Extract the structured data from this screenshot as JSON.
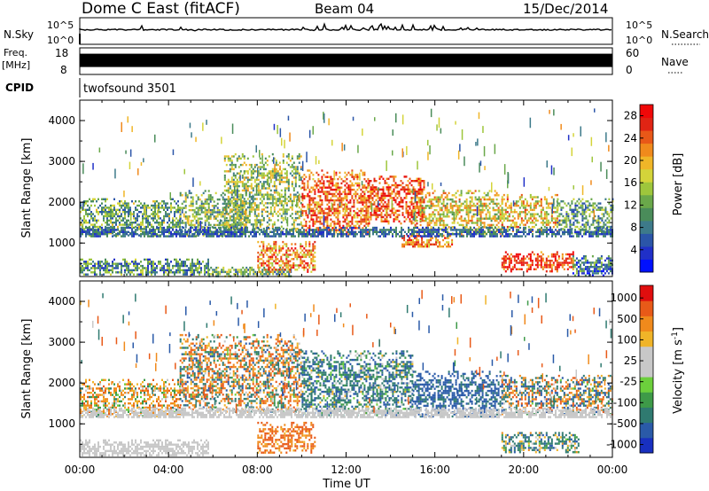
{
  "chart_data": [
    {
      "type": "line",
      "panel": "nsky",
      "header": {
        "site": "Dome C East (fitACF)",
        "beam": "Beam 04",
        "date": "15/Dec/2014"
      },
      "left_label": "N.Sky",
      "right_label": "N.Search",
      "left_ticks": [
        "10^5",
        "10^0"
      ],
      "right_ticks": [
        "10^5",
        "10^0"
      ],
      "x": [
        "00:00",
        "04:00",
        "08:00",
        "12:00",
        "16:00",
        "20:00",
        "00:00"
      ],
      "noise_level_fraction": 0.55
    },
    {
      "type": "line",
      "panel": "freq",
      "left_label": "Freq.",
      "left_unit": "[MHz]",
      "right_label": "Nave",
      "left_ticks": [
        "18",
        "8"
      ],
      "right_ticks": [
        "60",
        "0"
      ],
      "band": {
        "from_fraction": 0.22,
        "to_fraction": 0.72
      }
    },
    {
      "type": "table",
      "panel": "cpid",
      "label": "CPID",
      "value": "twofsound 3501"
    },
    {
      "type": "heatmap",
      "panel": "power",
      "ylabel": "Slant Range [km]",
      "y_ticks": [
        "1000",
        "2000",
        "3000",
        "4000"
      ],
      "ylim": [
        180,
        4500
      ],
      "xlim": [
        0,
        24
      ],
      "colorbar": {
        "label": "Power [dB]",
        "ticks": [
          "4",
          "8",
          "12",
          "16",
          "20",
          "24",
          "28"
        ],
        "range": [
          0,
          30
        ],
        "colors": [
          "#0010ff",
          "#2030c8",
          "#2b55a8",
          "#3d7a8a",
          "#4a8c5a",
          "#6aa84a",
          "#9ec63c",
          "#d4d43a",
          "#f0b628",
          "#f08a1c",
          "#e85818",
          "#e02414",
          "#f00808"
        ]
      },
      "echo_regions": [
        {
          "t0": 0.0,
          "t1": 5.8,
          "r0": 220,
          "r1": 620,
          "mode": "ground",
          "v": 10
        },
        {
          "t0": 5.8,
          "t1": 9.5,
          "r0": 200,
          "r1": 420,
          "mode": "ground",
          "v": 12
        },
        {
          "t0": 8.0,
          "t1": 10.6,
          "r0": 300,
          "r1": 1050,
          "mode": "patch",
          "v": 22
        },
        {
          "t0": 0.0,
          "t1": 4.5,
          "r0": 1200,
          "r1": 2100,
          "mode": "patch",
          "v": 12
        },
        {
          "t0": 4.5,
          "t1": 7.5,
          "r0": 1200,
          "r1": 2300,
          "mode": "patch",
          "v": 13
        },
        {
          "t0": 6.5,
          "t1": 10.0,
          "r0": 1300,
          "r1": 3200,
          "mode": "patch",
          "v": 14
        },
        {
          "t0": 10.0,
          "t1": 13.0,
          "r0": 1200,
          "r1": 2800,
          "mode": "hot",
          "v": 24
        },
        {
          "t0": 13.0,
          "t1": 15.5,
          "r0": 1500,
          "r1": 2650,
          "mode": "hot",
          "v": 25
        },
        {
          "t0": 15.0,
          "t1": 19.0,
          "r0": 1200,
          "r1": 2300,
          "mode": "patch",
          "v": 18
        },
        {
          "t0": 19.0,
          "t1": 21.5,
          "r0": 1300,
          "r1": 2200,
          "mode": "patch",
          "v": 19
        },
        {
          "t0": 21.5,
          "t1": 24.0,
          "r0": 1250,
          "r1": 2100,
          "mode": "patch",
          "v": 11
        },
        {
          "t0": 19.0,
          "t1": 22.2,
          "r0": 300,
          "r1": 800,
          "mode": "hot",
          "v": 26
        },
        {
          "t0": 22.2,
          "t1": 24.0,
          "r0": 200,
          "r1": 700,
          "mode": "ground",
          "v": 8
        },
        {
          "t0": 14.5,
          "t1": 16.8,
          "r0": 900,
          "r1": 1200,
          "mode": "hot",
          "v": 23
        },
        {
          "t0": 0.0,
          "t1": 24.0,
          "r0": 1150,
          "r1": 1400,
          "mode": "band",
          "v": 7
        }
      ]
    },
    {
      "type": "heatmap",
      "panel": "velocity",
      "ylabel": "Slant Range [km]",
      "y_ticks": [
        "1000",
        "2000",
        "3000",
        "4000"
      ],
      "ylim": [
        180,
        4500
      ],
      "xlim": [
        0,
        24
      ],
      "xlabel": "Time UT",
      "x_ticks": [
        "00:00",
        "04:00",
        "08:00",
        "12:00",
        "16:00",
        "20:00",
        "00:00"
      ],
      "colorbar": {
        "label": "Velocity [m s^-1]",
        "ticks": [
          "1000",
          "500",
          "100",
          "25",
          "-25",
          "-100",
          "-500",
          "-1000"
        ],
        "colors": [
          "#1830c0",
          "#2a5aa8",
          "#2f7a70",
          "#3e9a48",
          "#6ccf3c",
          "#c8c8c8",
          "#c8c8c8",
          "#f0b428",
          "#f08a1c",
          "#e85a18",
          "#e00e0e"
        ]
      },
      "echo_regions": [
        {
          "t0": 0.0,
          "t1": 5.8,
          "r0": 220,
          "r1": 620,
          "mode": "v-ground",
          "v": 0
        },
        {
          "t0": 8.0,
          "t1": 10.6,
          "r0": 300,
          "r1": 1050,
          "mode": "v-neg",
          "v": -300
        },
        {
          "t0": 0.0,
          "t1": 4.5,
          "r0": 1200,
          "r1": 2100,
          "mode": "v-neg",
          "v": -120
        },
        {
          "t0": 4.5,
          "t1": 10.0,
          "r0": 1300,
          "r1": 3200,
          "mode": "v-mix",
          "v": -60
        },
        {
          "t0": 10.0,
          "t1": 15.0,
          "r0": 1200,
          "r1": 2800,
          "mode": "v-pos",
          "v": 200
        },
        {
          "t0": 15.0,
          "t1": 19.0,
          "r0": 1200,
          "r1": 2300,
          "mode": "v-pos",
          "v": 400
        },
        {
          "t0": 19.0,
          "t1": 24.0,
          "r0": 1250,
          "r1": 2200,
          "mode": "v-mix",
          "v": 20
        },
        {
          "t0": 19.0,
          "t1": 22.5,
          "r0": 300,
          "r1": 800,
          "mode": "v-pos",
          "v": 120
        },
        {
          "t0": 0.0,
          "t1": 24.0,
          "r0": 1150,
          "r1": 1400,
          "mode": "v-band",
          "v": 0
        }
      ]
    }
  ]
}
